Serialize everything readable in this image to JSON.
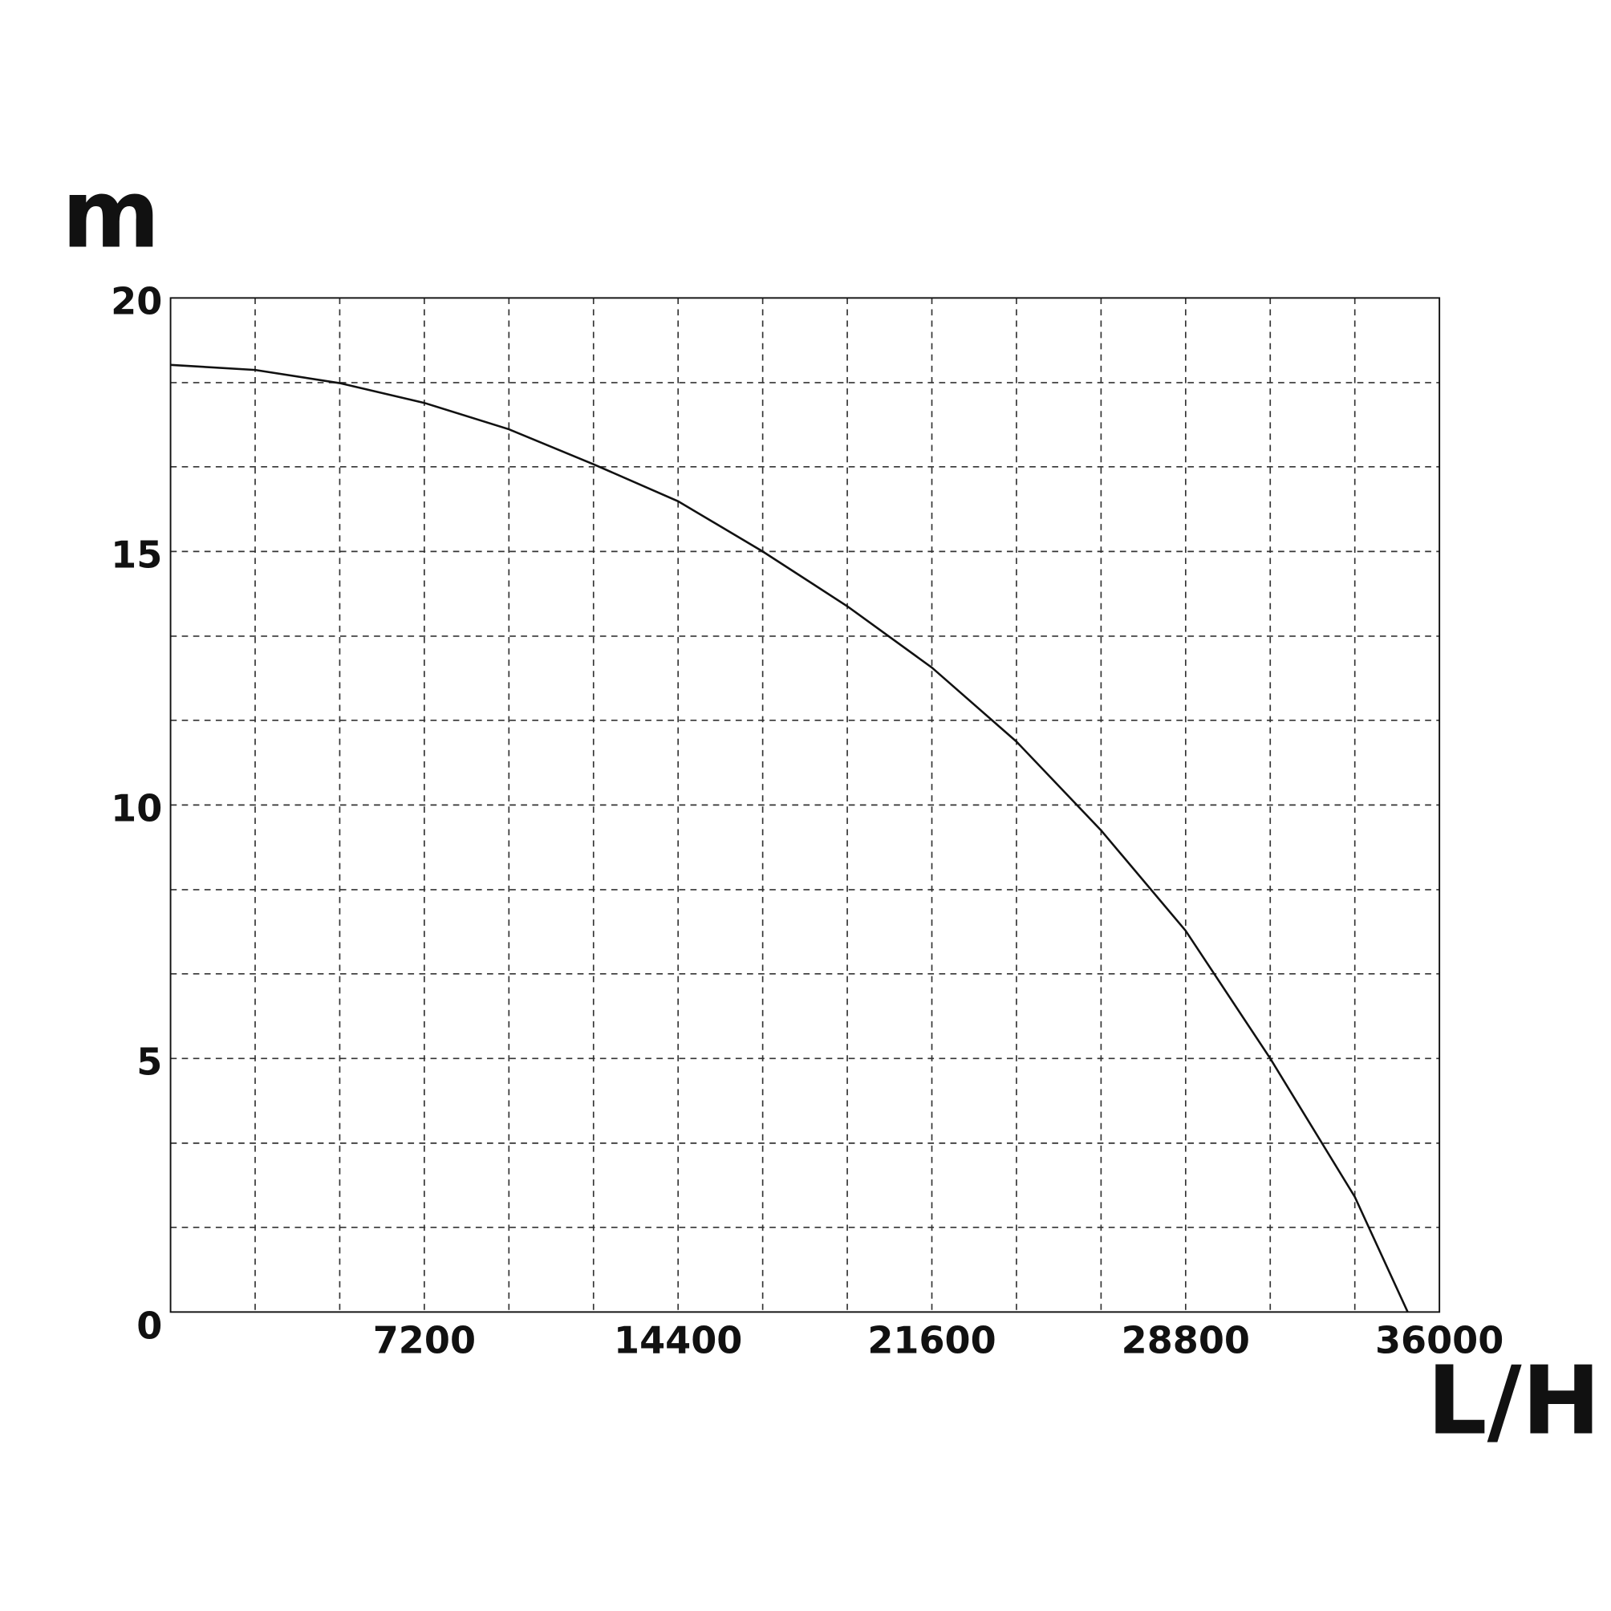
{
  "chart_data": {
    "type": "line",
    "y_label": "m",
    "x_label": "L/H",
    "xlim": [
      0,
      36000
    ],
    "ylim": [
      0,
      20
    ],
    "xticks": [
      7200,
      14400,
      21600,
      28800,
      36000
    ],
    "yticks": [
      0,
      5,
      10,
      15,
      20
    ],
    "grid": true,
    "xgrid": [
      2400,
      4800,
      7200,
      9600,
      12000,
      14400,
      16800,
      19200,
      21600,
      24000,
      26400,
      28800,
      31200,
      33600
    ],
    "ygrid": [
      1.67,
      3.33,
      5,
      6.67,
      8.33,
      10,
      11.67,
      13.33,
      15,
      16.67,
      18.33
    ],
    "series": [
      {
        "color": "#111111",
        "x": [
          0,
          2400,
          4800,
          7200,
          9600,
          12000,
          14400,
          16800,
          19200,
          21600,
          24000,
          26400,
          28800,
          31200,
          33600,
          35100
        ],
        "values": [
          18.68,
          18.58,
          18.32,
          17.93,
          17.41,
          16.72,
          15.99,
          15.0,
          13.92,
          12.71,
          11.25,
          9.5,
          7.52,
          5.0,
          2.27,
          0
        ]
      }
    ]
  }
}
